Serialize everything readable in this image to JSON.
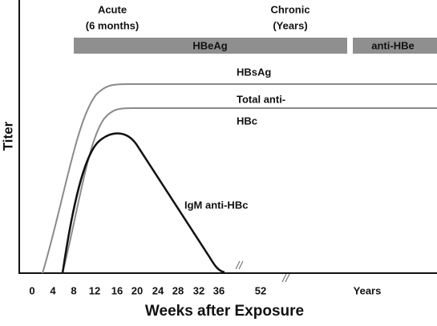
{
  "phases": {
    "acute": [
      "Acute",
      "(6 months)"
    ],
    "chronic": [
      "Chronic",
      "(Years)"
    ]
  },
  "bars": [
    "HBeAg",
    "anti-HBe"
  ],
  "curves": [
    "HBsAg",
    "Total anti-",
    "HBc",
    "IgM anti-HBc"
  ],
  "axis": {
    "y_label": "Titer",
    "x_label": "Weeks after Exposure",
    "x_ticks": [
      "0",
      "4",
      "8",
      "12",
      "16",
      "20",
      "24",
      "28",
      "32",
      "36",
      "52",
      "Years"
    ]
  }
}
